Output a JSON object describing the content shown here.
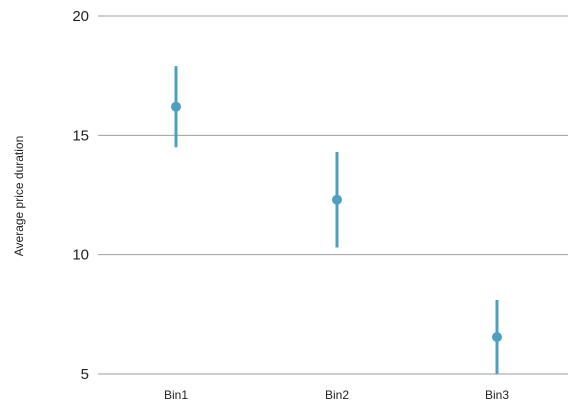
{
  "chart_data": {
    "type": "scatter",
    "subtype": "point-with-error-bars",
    "title": "",
    "xlabel": "",
    "ylabel": "Average price duration",
    "categories": [
      "Bin1",
      "Bin2",
      "Bin3"
    ],
    "series": [
      {
        "values": [
          16.2,
          12.3,
          6.55
        ],
        "lower": [
          14.5,
          10.3,
          5.0
        ],
        "upper": [
          17.9,
          14.3,
          8.1
        ],
        "color": "#4f9fc4"
      }
    ],
    "ylim": [
      5,
      20
    ],
    "yticks": [
      5,
      10,
      15,
      20
    ],
    "grid": "horizontal",
    "legend": "none"
  }
}
